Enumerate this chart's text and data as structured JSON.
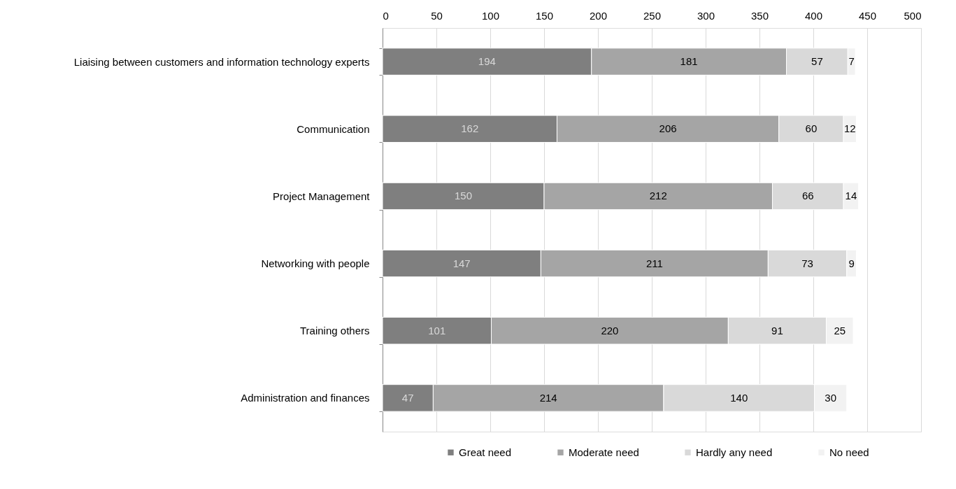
{
  "chart_data": {
    "type": "bar",
    "orientation": "horizontal",
    "stacked": true,
    "categories": [
      "Liaising between customers and information technology experts",
      "Communication",
      "Project Management",
      "Networking with people",
      "Training others",
      "Administration and finances"
    ],
    "series": [
      {
        "name": "Great need",
        "color": "#7f7f7f",
        "values": [
          194,
          162,
          150,
          147,
          101,
          47
        ]
      },
      {
        "name": "Moderate need",
        "color": "#a5a5a5",
        "values": [
          181,
          206,
          212,
          211,
          220,
          214
        ]
      },
      {
        "name": "Hardly any need",
        "color": "#d9d9d9",
        "values": [
          57,
          60,
          66,
          73,
          91,
          140
        ]
      },
      {
        "name": "No need",
        "color": "#f2f2f2",
        "values": [
          7,
          12,
          14,
          9,
          25,
          30
        ]
      }
    ],
    "xlim": [
      0,
      500
    ],
    "xticks": [
      0,
      50,
      100,
      150,
      200,
      250,
      300,
      350,
      400,
      450,
      500
    ],
    "grid": "x",
    "legend": "bottom",
    "data_labels": true
  }
}
